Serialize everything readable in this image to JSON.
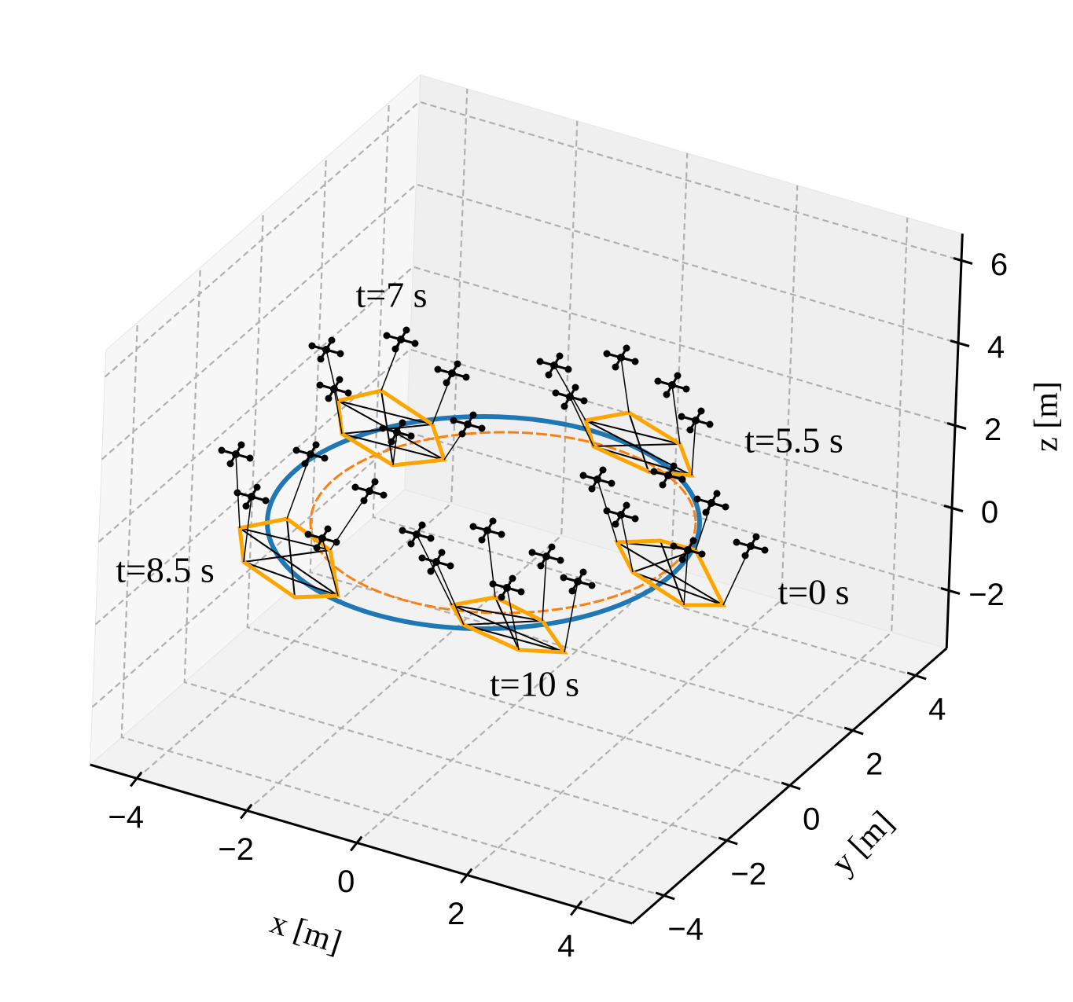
{
  "chart_data": {
    "type": "line3d",
    "xlabel": "x [m]",
    "ylabel": "y [m]",
    "zlabel": "z [m]",
    "xlim": [
      -4.85,
      5
    ],
    "ylim": [
      -5,
      5
    ],
    "zlim": [
      -3.4,
      6.65
    ],
    "xticks": [
      {
        "value": -4,
        "label": "−4"
      },
      {
        "value": -2,
        "label": "−2"
      },
      0,
      2,
      4
    ],
    "yticks": [
      {
        "value": -4,
        "label": "−4"
      },
      {
        "value": -2,
        "label": "−2"
      },
      0,
      2,
      4
    ],
    "zticks": [
      {
        "value": -2,
        "label": "−2"
      },
      0,
      2,
      4,
      6
    ],
    "grid": true,
    "annotations": [
      "t=7 s",
      "t=5.5 s",
      "t=8.5 s",
      "t=0 s",
      "t=10 s"
    ]
  }
}
